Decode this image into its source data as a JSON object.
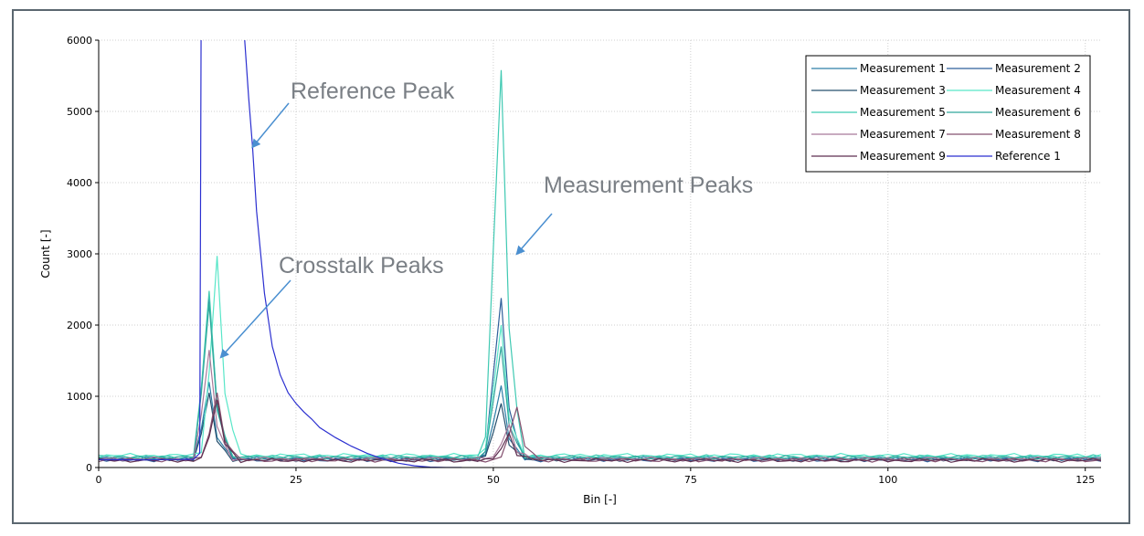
{
  "chart_data": {
    "type": "line",
    "title": "",
    "xlabel": "Bin [-]",
    "ylabel": "Count [-]",
    "xlim": [
      0,
      127
    ],
    "ylim": [
      0,
      6000
    ],
    "x_ticks": [
      0,
      25,
      50,
      75,
      100,
      125
    ],
    "y_ticks": [
      0,
      1000,
      2000,
      3000,
      4000,
      5000,
      6000
    ],
    "grid": true,
    "legend_position": "top-right",
    "annotations": [
      {
        "text": "Reference Peak",
        "target_x": 19.5,
        "target_y": 4500
      },
      {
        "text": "Measurement Peaks",
        "target_x": 53,
        "target_y": 3000
      },
      {
        "text": "Crosstalk Peaks",
        "target_x": 15.5,
        "target_y": 1550
      }
    ],
    "series": [
      {
        "name": "Measurement 1",
        "color": "#2f7fa8",
        "baseline": 125,
        "peak1_bin": 14,
        "peak1": 1200,
        "peak2_bin": 51,
        "peak2": 1150
      },
      {
        "name": "Measurement 2",
        "color": "#2f5f9a",
        "baseline": 110,
        "peak1_bin": 14,
        "peak1": 2400,
        "peak2_bin": 51,
        "peak2": 2380
      },
      {
        "name": "Measurement 3",
        "color": "#26506e",
        "baseline": 115,
        "peak1_bin": 14,
        "peak1": 1050,
        "peak2_bin": 51,
        "peak2": 900
      },
      {
        "name": "Measurement 4",
        "color": "#58e6c8",
        "baseline": 170,
        "peak1_bin": 15,
        "peak1": 2970,
        "peak2_bin": 51,
        "peak2": 2000
      },
      {
        "name": "Measurement 5",
        "color": "#3fc9b2",
        "baseline": 150,
        "peak1_bin": 14,
        "peak1": 2480,
        "peak2_bin": 51,
        "peak2": 5580
      },
      {
        "name": "Measurement 6",
        "color": "#30a79c",
        "baseline": 140,
        "peak1_bin": 14,
        "peak1": 2300,
        "peak2_bin": 51,
        "peak2": 1700
      },
      {
        "name": "Measurement 7",
        "color": "#a8799a",
        "baseline": 120,
        "peak1_bin": 14,
        "peak1": 1650,
        "peak2_bin": 52,
        "peak2": 600
      },
      {
        "name": "Measurement 8",
        "color": "#84506f",
        "baseline": 105,
        "peak1_bin": 15,
        "peak1": 1050,
        "peak2_bin": 53,
        "peak2": 850
      },
      {
        "name": "Measurement 9",
        "color": "#5e2f50",
        "baseline": 100,
        "peak1_bin": 15,
        "peak1": 950,
        "peak2_bin": 52,
        "peak2": 480
      },
      {
        "name": "Reference 1",
        "color": "#2b2fd0",
        "points": [
          [
            0,
            110
          ],
          [
            5,
            108
          ],
          [
            10,
            112
          ],
          [
            12,
            115
          ],
          [
            12.8,
            200
          ],
          [
            13,
            7000
          ],
          [
            18.2,
            7000
          ],
          [
            18.5,
            6000
          ],
          [
            19,
            5200
          ],
          [
            19.5,
            4500
          ],
          [
            20,
            3600
          ],
          [
            21,
            2450
          ],
          [
            22,
            1700
          ],
          [
            23,
            1300
          ],
          [
            24,
            1050
          ],
          [
            25,
            900
          ],
          [
            26,
            780
          ],
          [
            27,
            680
          ],
          [
            28,
            560
          ],
          [
            30,
            420
          ],
          [
            32,
            300
          ],
          [
            34,
            200
          ],
          [
            36,
            120
          ],
          [
            38,
            60
          ],
          [
            40,
            25
          ],
          [
            42,
            5
          ],
          [
            44,
            0
          ],
          [
            46,
            0
          ]
        ]
      }
    ]
  }
}
